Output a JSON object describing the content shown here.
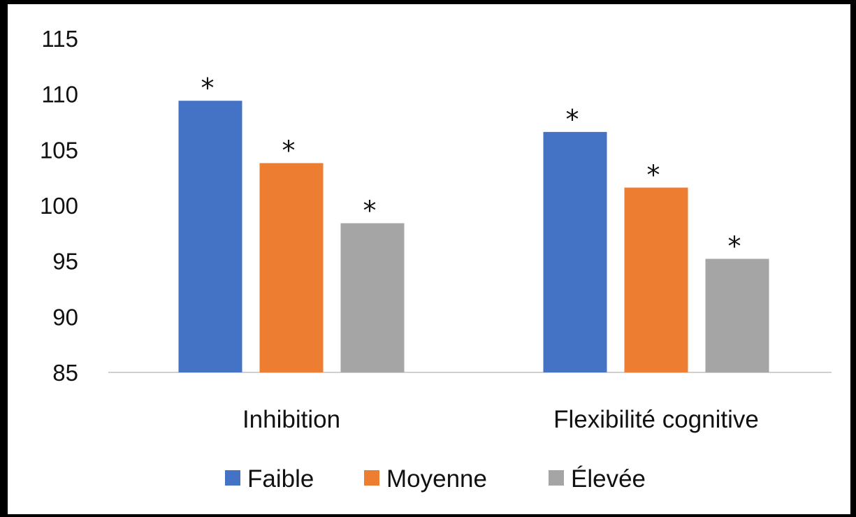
{
  "chart_data": {
    "type": "bar",
    "categories": [
      "Inhibition",
      "Flexibilité cognitive"
    ],
    "series": [
      {
        "name": "Faible",
        "values": [
          109.4,
          106.6
        ],
        "color": "#4472C4",
        "annotation": "*"
      },
      {
        "name": "Moyenne",
        "values": [
          103.8,
          101.6
        ],
        "color": "#ED7D31",
        "annotation": "*"
      },
      {
        "name": "Élevée",
        "values": [
          98.4,
          95.2
        ],
        "color": "#A5A5A5",
        "annotation": "*"
      }
    ],
    "ylim": [
      85,
      115
    ],
    "yticks": [
      85,
      90,
      95,
      100,
      105,
      110,
      115
    ],
    "grid": false,
    "legend_position": "bottom"
  }
}
